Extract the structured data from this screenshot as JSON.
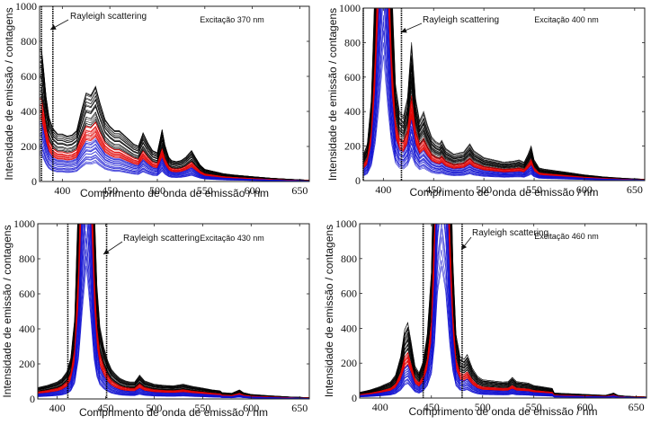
{
  "chart_data": [
    {
      "type": "line",
      "title": "",
      "annotation": "Excitação 370 nm",
      "rayleigh_label": "Rayleigh scattering",
      "xlabel": "Comprimento de onda de emissão / nm",
      "ylabel": "Intensidade de emissão / contagens",
      "xlim": [
        376,
        660
      ],
      "ylim": [
        0,
        1000
      ],
      "xticks": [
        400,
        450,
        500,
        550,
        600,
        650
      ],
      "yticks": [
        0,
        200,
        400,
        600,
        800,
        1000
      ],
      "rayleigh_lines_nm": [
        378,
        390
      ],
      "excitation_nm": 370,
      "series_groups": [
        {
          "name": "black spectra",
          "color": "#000000",
          "count": 22,
          "scale_range": [
            0.8,
            1.3
          ]
        },
        {
          "name": "red spectra",
          "color": "#e00000",
          "count": 14,
          "scale_range": [
            0.58,
            0.8
          ]
        },
        {
          "name": "blue spectra",
          "color": "#1010d0",
          "count": 18,
          "scale_range": [
            0.25,
            0.58
          ]
        }
      ],
      "reference_spectrum": {
        "x": [
          376,
          378,
          380,
          383,
          386,
          390,
          395,
          400,
          405,
          410,
          415,
          420,
          425,
          430,
          435,
          440,
          445,
          450,
          455,
          460,
          465,
          470,
          475,
          480,
          485,
          490,
          495,
          500,
          505,
          508,
          512,
          515,
          520,
          525,
          530,
          536,
          540,
          545,
          550,
          560,
          570,
          580,
          600,
          620,
          640,
          660
        ],
        "y": [
          600,
          600,
          520,
          380,
          290,
          240,
          215,
          215,
          205,
          210,
          230,
          320,
          400,
          390,
          430,
          350,
          280,
          250,
          230,
          230,
          210,
          190,
          170,
          160,
          220,
          175,
          140,
          130,
          235,
          165,
          110,
          95,
          90,
          95,
          110,
          140,
          110,
          75,
          55,
          45,
          35,
          30,
          22,
          15,
          10,
          6
        ]
      }
    },
    {
      "type": "line",
      "title": "",
      "annotation": "Excitação 400 nm",
      "rayleigh_label": "Rayleigh scattering",
      "xlabel": "Comprimento de onda de emissão / nm",
      "ylabel": "Intensidade de emissão / contagens",
      "xlim": [
        380,
        660
      ],
      "ylim": [
        0,
        1000
      ],
      "xticks": [
        400,
        450,
        500,
        550,
        600,
        650
      ],
      "yticks": [
        0,
        200,
        400,
        600,
        800,
        1000
      ],
      "rayleigh_lines_nm": [
        380,
        418
      ],
      "excitation_nm": 400,
      "series_groups": [
        {
          "name": "black spectra",
          "color": "#000000",
          "count": 22,
          "scale_range": [
            0.8,
            1.3
          ]
        },
        {
          "name": "red spectra",
          "color": "#e00000",
          "count": 14,
          "scale_range": [
            0.58,
            0.8
          ]
        },
        {
          "name": "blue spectra",
          "color": "#1010d0",
          "count": 18,
          "scale_range": [
            0.25,
            0.58
          ]
        }
      ],
      "reference_spectrum": {
        "x": [
          380,
          384,
          388,
          392,
          395,
          400,
          405,
          408,
          412,
          416,
          420,
          424,
          428,
          432,
          436,
          440,
          444,
          448,
          452,
          456,
          458,
          462,
          470,
          480,
          486,
          490,
          500,
          510,
          520,
          530,
          535,
          540,
          544,
          547,
          550,
          555,
          560,
          580,
          600,
          620,
          640,
          660
        ],
        "y": [
          110,
          160,
          350,
          900,
          1600,
          3000,
          1600,
          900,
          420,
          300,
          280,
          360,
          600,
          360,
          260,
          300,
          240,
          190,
          170,
          160,
          175,
          140,
          115,
          125,
          160,
          130,
          100,
          90,
          80,
          85,
          90,
          80,
          115,
          150,
          90,
          55,
          50,
          38,
          25,
          16,
          10,
          6
        ]
      }
    },
    {
      "type": "line",
      "title": "",
      "annotation": "Excitação 430 nm",
      "rayleigh_label": "Rayleigh scattering",
      "xlabel": "Comprimento de onda de emissão / nm",
      "ylabel": "Intensidade de emissão / contagens",
      "xlim": [
        380,
        660
      ],
      "ylim": [
        0,
        1000
      ],
      "xticks": [
        400,
        450,
        500,
        550,
        600,
        650
      ],
      "yticks": [
        0,
        200,
        400,
        600,
        800,
        1000
      ],
      "rayleigh_lines_nm": [
        411,
        451
      ],
      "excitation_nm": 430,
      "series_groups": [
        {
          "name": "black spectra",
          "color": "#000000",
          "count": 22,
          "scale_range": [
            0.8,
            1.3
          ]
        },
        {
          "name": "red spectra",
          "color": "#e00000",
          "count": 14,
          "scale_range": [
            0.58,
            0.8
          ]
        },
        {
          "name": "blue spectra",
          "color": "#1010d0",
          "count": 18,
          "scale_range": [
            0.25,
            0.58
          ]
        }
      ],
      "reference_spectrum": {
        "x": [
          380,
          390,
          400,
          405,
          410,
          414,
          418,
          422,
          426,
          430,
          434,
          438,
          441,
          444,
          448,
          452,
          456,
          460,
          465,
          470,
          475,
          480,
          485,
          490,
          500,
          510,
          520,
          530,
          540,
          550,
          560,
          568,
          570,
          580,
          588,
          592,
          600,
          620,
          640,
          660
        ],
        "y": [
          50,
          60,
          75,
          90,
          120,
          180,
          350,
          900,
          2000,
          3000,
          2000,
          900,
          500,
          320,
          230,
          170,
          130,
          110,
          90,
          80,
          75,
          75,
          105,
          80,
          65,
          60,
          58,
          65,
          55,
          48,
          40,
          36,
          28,
          25,
          40,
          28,
          20,
          14,
          9,
          6
        ]
      }
    },
    {
      "type": "line",
      "title": "",
      "annotation": "Excitação 460 nm",
      "rayleigh_label": "Rayleigh scattering",
      "xlabel": "Comprimento de onda de emissão / nm",
      "ylabel": "Intensidade de emissão / contagens",
      "xlim": [
        380,
        660
      ],
      "ylim": [
        0,
        1000
      ],
      "xticks": [
        400,
        450,
        500,
        550,
        600,
        650
      ],
      "yticks": [
        0,
        200,
        400,
        600,
        800,
        1000
      ],
      "rayleigh_lines_nm": [
        442,
        480
      ],
      "excitation_nm": 460,
      "series_groups": [
        {
          "name": "black spectra",
          "color": "#000000",
          "count": 22,
          "scale_range": [
            0.8,
            1.3
          ]
        },
        {
          "name": "red spectra",
          "color": "#e00000",
          "count": 14,
          "scale_range": [
            0.58,
            0.8
          ]
        },
        {
          "name": "blue spectra",
          "color": "#1010d0",
          "count": 18,
          "scale_range": [
            0.25,
            0.58
          ]
        }
      ],
      "reference_spectrum": {
        "x": [
          380,
          390,
          400,
          410,
          415,
          420,
          424,
          427,
          430,
          434,
          438,
          442,
          446,
          450,
          453,
          456,
          460,
          464,
          468,
          471,
          474,
          478,
          482,
          485,
          490,
          495,
          500,
          510,
          520,
          525,
          529,
          533,
          540,
          545,
          550,
          560,
          568,
          570,
          580,
          600,
          620,
          628,
          632,
          640,
          660
        ],
        "y": [
          25,
          35,
          50,
          70,
          100,
          180,
          300,
          330,
          250,
          140,
          110,
          160,
          280,
          550,
          1200,
          2400,
          3000,
          2400,
          1200,
          600,
          280,
          180,
          170,
          190,
          130,
          95,
          80,
          75,
          70,
          72,
          90,
          72,
          68,
          65,
          55,
          48,
          42,
          22,
          20,
          16,
          12,
          22,
          12,
          8,
          5
        ]
      }
    }
  ]
}
